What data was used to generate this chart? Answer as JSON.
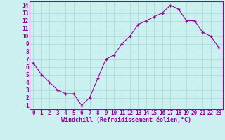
{
  "x": [
    0,
    1,
    2,
    3,
    4,
    5,
    6,
    7,
    8,
    9,
    10,
    11,
    12,
    13,
    14,
    15,
    16,
    17,
    18,
    19,
    20,
    21,
    22,
    23
  ],
  "y": [
    6.5,
    5.0,
    4.0,
    3.0,
    2.5,
    2.5,
    1.0,
    2.0,
    4.5,
    7.0,
    7.5,
    9.0,
    10.0,
    11.5,
    12.0,
    12.5,
    13.0,
    14.0,
    13.5,
    12.0,
    12.0,
    10.5,
    10.0,
    8.5
  ],
  "line_color": "#990099",
  "marker": "+",
  "marker_size": 3,
  "marker_lw": 1.0,
  "bg_color": "#ccf0f0",
  "grid_color": "#aadddd",
  "xlabel": "Windchill (Refroidissement éolien,°C)",
  "xlabel_color": "#990099",
  "tick_color": "#990099",
  "xlim": [
    -0.5,
    23.5
  ],
  "ylim": [
    0.5,
    14.5
  ],
  "yticks": [
    1,
    2,
    3,
    4,
    5,
    6,
    7,
    8,
    9,
    10,
    11,
    12,
    13,
    14
  ],
  "xticks": [
    0,
    1,
    2,
    3,
    4,
    5,
    6,
    7,
    8,
    9,
    10,
    11,
    12,
    13,
    14,
    15,
    16,
    17,
    18,
    19,
    20,
    21,
    22,
    23
  ],
  "xtick_labels": [
    "0",
    "1",
    "2",
    "3",
    "4",
    "5",
    "6",
    "7",
    "8",
    "9",
    "10",
    "11",
    "12",
    "13",
    "14",
    "15",
    "16",
    "17",
    "18",
    "19",
    "20",
    "21",
    "22",
    "23"
  ],
  "ytick_labels": [
    "1",
    "2",
    "3",
    "4",
    "5",
    "6",
    "7",
    "8",
    "9",
    "10",
    "11",
    "12",
    "13",
    "14"
  ],
  "tick_fontsize": 5.5,
  "xlabel_fontsize": 6.0,
  "line_width": 0.8,
  "spine_color": "#990099"
}
